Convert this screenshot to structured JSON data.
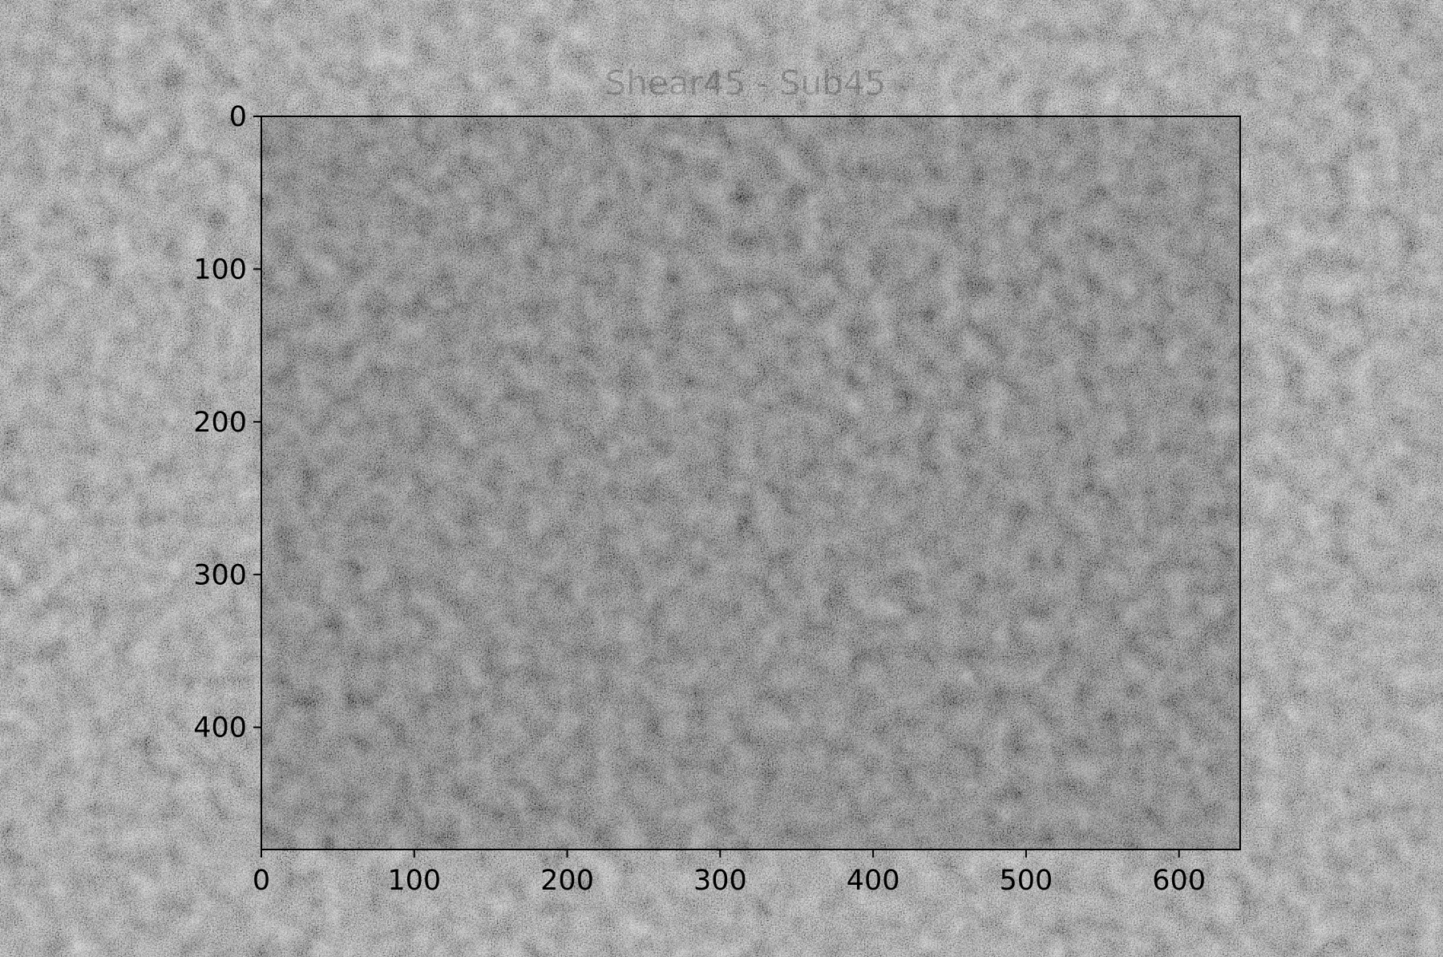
{
  "chart_data": {
    "type": "heatmap",
    "title": "Shear45 - Sub45",
    "xlabel": "",
    "ylabel": "",
    "colormap": "gray",
    "image_width": 640,
    "image_height": 480,
    "xlim": [
      0,
      640
    ],
    "ylim": [
      480,
      0
    ],
    "x_ticks": [
      0,
      100,
      200,
      300,
      400,
      500,
      600
    ],
    "y_ticks": [
      0,
      100,
      200,
      300,
      400
    ],
    "x_tick_labels": [
      "0",
      "100",
      "200",
      "300",
      "400",
      "500",
      "600"
    ],
    "y_tick_labels": [
      "0",
      "100",
      "200",
      "300",
      "400"
    ],
    "grid": false,
    "legend": "none",
    "mean_gray": "#5b5b5b",
    "description_of_values": "fine-grained gray noise texture"
  }
}
